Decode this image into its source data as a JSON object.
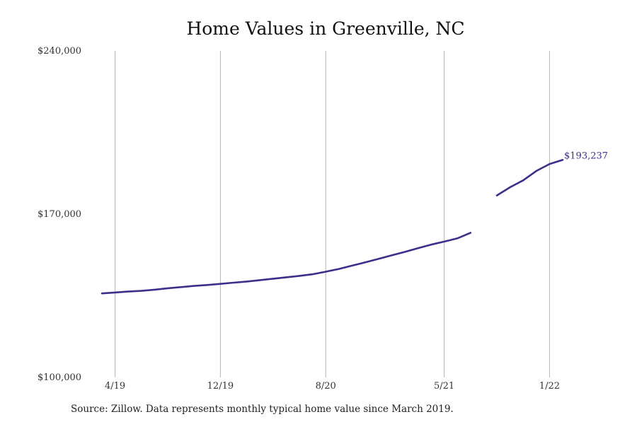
{
  "chart_data": {
    "type": "line",
    "title": "Home Values in Greenville, NC",
    "xlabel": "",
    "ylabel": "",
    "ylim": [
      100000,
      240000
    ],
    "y_ticks": [
      {
        "value": 240000,
        "label": "$240,000"
      },
      {
        "value": 170000,
        "label": "$170,000"
      },
      {
        "value": 100000,
        "label": "$100,000"
      }
    ],
    "x_ticks": [
      {
        "value": "2019-04",
        "label": "4/19"
      },
      {
        "value": "2019-12",
        "label": "12/19"
      },
      {
        "value": "2020-08",
        "label": "8/20"
      },
      {
        "value": "2021-05",
        "label": "5/21"
      },
      {
        "value": "2022-01",
        "label": "1/22"
      }
    ],
    "x_range": [
      "2019-03",
      "2022-07"
    ],
    "grid": "vertical",
    "line_color": "#3a2f8a",
    "series": [
      {
        "segments": [
          [
            {
              "x": "2019-03",
              "y": 136000
            },
            {
              "x": "2019-04",
              "y": 136400
            },
            {
              "x": "2019-05",
              "y": 136800
            },
            {
              "x": "2019-06",
              "y": 137100
            },
            {
              "x": "2019-07",
              "y": 137600
            },
            {
              "x": "2019-08",
              "y": 138200
            },
            {
              "x": "2019-09",
              "y": 138700
            },
            {
              "x": "2019-10",
              "y": 139200
            },
            {
              "x": "2019-11",
              "y": 139600
            },
            {
              "x": "2019-12",
              "y": 140100
            },
            {
              "x": "2020-01",
              "y": 140600
            },
            {
              "x": "2020-02",
              "y": 141100
            },
            {
              "x": "2020-03",
              "y": 141700
            },
            {
              "x": "2020-04",
              "y": 142300
            },
            {
              "x": "2020-05",
              "y": 142900
            },
            {
              "x": "2020-06",
              "y": 143500
            },
            {
              "x": "2020-07",
              "y": 144200
            },
            {
              "x": "2020-08",
              "y": 145300
            },
            {
              "x": "2020-09",
              "y": 146500
            },
            {
              "x": "2020-10",
              "y": 147900
            },
            {
              "x": "2020-11",
              "y": 149300
            },
            {
              "x": "2020-12",
              "y": 150800
            },
            {
              "x": "2021-01",
              "y": 152300
            },
            {
              "x": "2021-02",
              "y": 153800
            },
            {
              "x": "2021-03",
              "y": 155400
            },
            {
              "x": "2021-04",
              "y": 156900
            },
            {
              "x": "2021-05",
              "y": 158200
            },
            {
              "x": "2021-06",
              "y": 159600
            },
            {
              "x": "2021-07",
              "y": 162000
            }
          ],
          [
            {
              "x": "2021-09",
              "y": 178000
            },
            {
              "x": "2021-10",
              "y": 181500
            },
            {
              "x": "2021-11",
              "y": 184500
            },
            {
              "x": "2021-12",
              "y": 188500
            },
            {
              "x": "2022-01",
              "y": 191500
            },
            {
              "x": "2022-02",
              "y": 193237
            }
          ]
        ]
      }
    ],
    "end_label": "$193,237",
    "source_note": "Source: Zillow. Data represents monthly typical home value since March 2019."
  }
}
